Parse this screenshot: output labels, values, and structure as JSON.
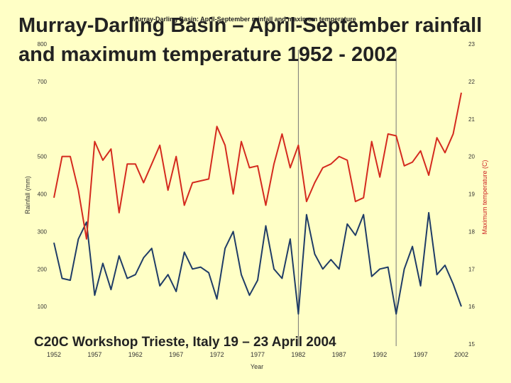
{
  "slide": {
    "title_line1": "Murray-Darling Basin – April-September rainfall",
    "title_line2": "and maximum temperature 1952 - 2002",
    "footer": "C20C Workshop Trieste, Italy 19 – 23 April 2004"
  },
  "chart_data": {
    "type": "line",
    "title": "Murray-Darling Basin: April-September rainfall and maximum temperature",
    "xlabel": "Year",
    "ylabel_left": "Rainfall (mm)",
    "ylabel_right": "Maximum temperature (C)",
    "xlim": [
      1952,
      2002
    ],
    "ylim_left": [
      0,
      800
    ],
    "ylim_right": [
      15,
      23
    ],
    "x_ticks": [
      "1952",
      "1957",
      "1962",
      "1967",
      "1972",
      "1977",
      "1982",
      "1987",
      "1992",
      "1997",
      "2002"
    ],
    "y_left_ticks": [
      "100",
      "200",
      "300",
      "400",
      "500",
      "600",
      "700",
      "800"
    ],
    "y_right_ticks": [
      "15",
      "16",
      "17",
      "18",
      "19",
      "20",
      "21",
      "22",
      "23"
    ],
    "reference_lines_x": [
      1982,
      1994
    ],
    "years": [
      1952,
      1953,
      1954,
      1955,
      1956,
      1957,
      1958,
      1959,
      1960,
      1961,
      1962,
      1963,
      1964,
      1965,
      1966,
      1967,
      1968,
      1969,
      1970,
      1971,
      1972,
      1973,
      1974,
      1975,
      1976,
      1977,
      1978,
      1979,
      1980,
      1981,
      1982,
      1983,
      1984,
      1985,
      1986,
      1987,
      1988,
      1989,
      1990,
      1991,
      1992,
      1993,
      1994,
      1995,
      1996,
      1997,
      1998,
      1999,
      2000,
      2001,
      2002
    ],
    "series": [
      {
        "name": "Rainfall (mm)",
        "axis": "left",
        "color": "#1f3c66",
        "values": [
          270,
          175,
          170,
          280,
          325,
          130,
          215,
          145,
          235,
          175,
          185,
          230,
          255,
          155,
          185,
          140,
          245,
          200,
          205,
          190,
          120,
          255,
          300,
          185,
          130,
          170,
          315,
          200,
          175,
          280,
          80,
          345,
          240,
          200,
          225,
          200,
          320,
          290,
          345,
          180,
          200,
          205,
          80,
          200,
          260,
          155,
          350,
          185,
          210,
          160,
          100
        ]
      },
      {
        "name": "Maximum temperature (C)",
        "axis": "right",
        "color": "#d42a1e",
        "values": [
          18.9,
          20.0,
          20.0,
          19.1,
          17.8,
          20.4,
          19.9,
          20.2,
          18.5,
          19.8,
          19.8,
          19.3,
          19.8,
          20.3,
          19.1,
          20.0,
          18.7,
          19.3,
          19.35,
          19.4,
          20.8,
          20.3,
          19.0,
          20.4,
          19.7,
          19.75,
          18.7,
          19.8,
          20.6,
          19.7,
          20.3,
          18.8,
          19.3,
          19.7,
          19.8,
          20.0,
          19.9,
          18.8,
          18.9,
          20.4,
          19.45,
          20.6,
          20.55,
          19.75,
          19.85,
          20.15,
          19.5,
          20.5,
          20.1,
          20.6,
          21.7
        ]
      }
    ]
  }
}
